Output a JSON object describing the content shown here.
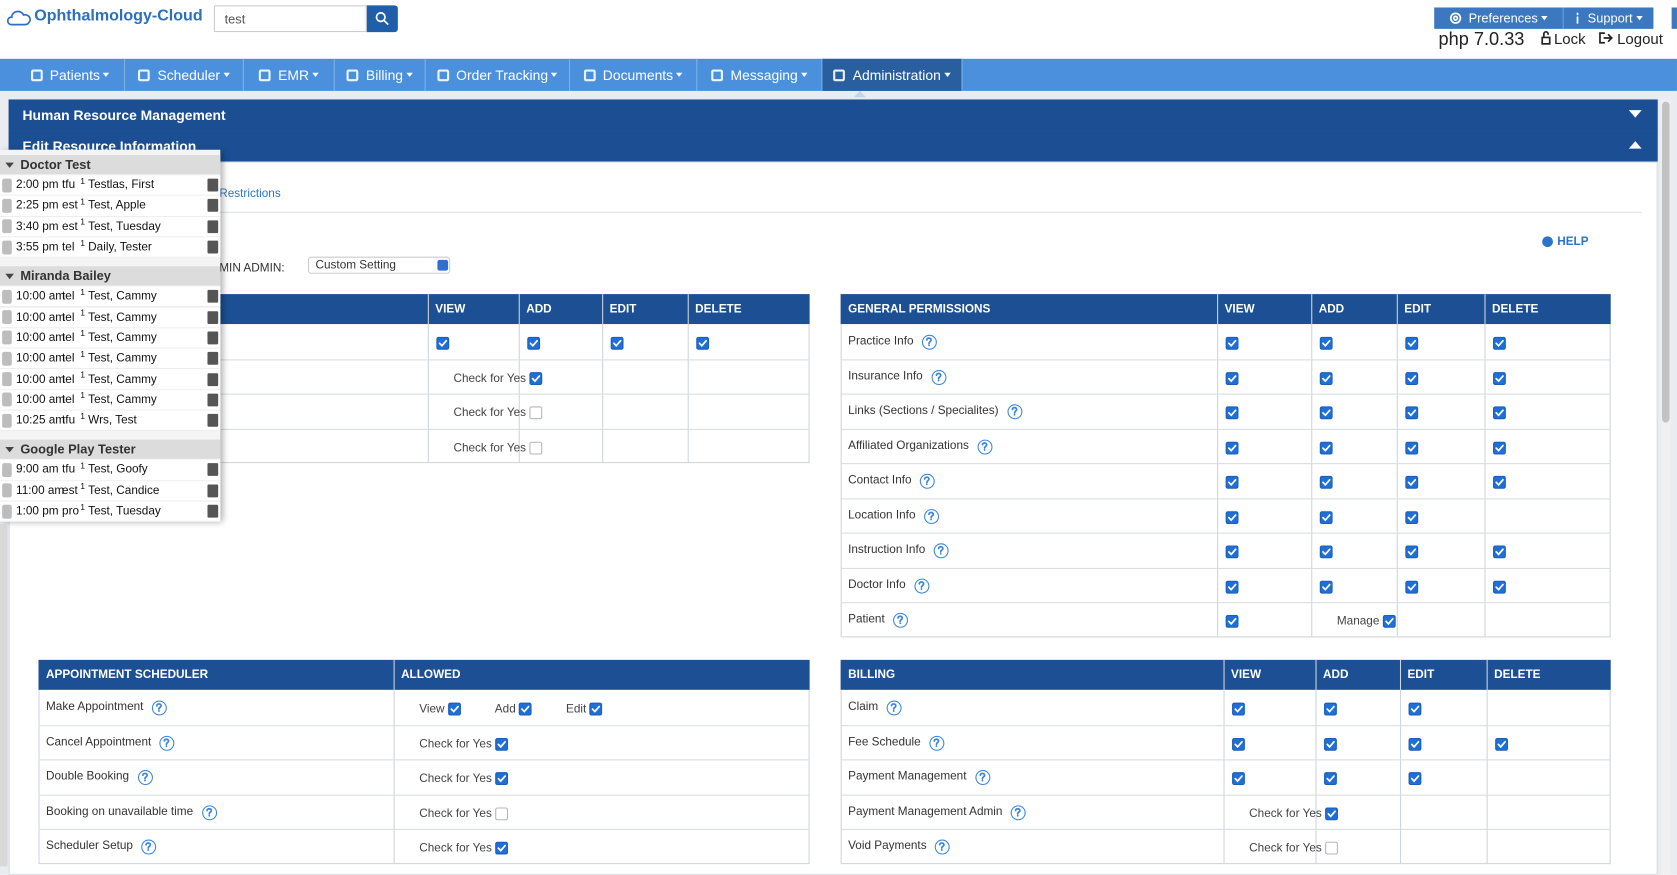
{
  "header": {
    "logo": "Ophthalmology-Cloud",
    "search": "test",
    "preferences": "Preferences",
    "support": "Support",
    "php": "php 7.0.33",
    "lock": "Lock",
    "logout": "Logout"
  },
  "nav": [
    "Patients",
    "Scheduler",
    "EMR",
    "Billing",
    "Order Tracking",
    "Documents",
    "Messaging",
    "Administration"
  ],
  "panels": [
    "Human Resource Management",
    "Edit Resource Information"
  ],
  "tab": "Restrictions",
  "admin_label": "MIN ADMIN:",
  "admin_select": "Custom Setting",
  "help": "HELP",
  "tables": [
    {
      "headers": [
        null,
        "VIEW",
        "ADD",
        "EDIT",
        "DELETE"
      ],
      "rows": [
        {
          "checks": [
            true,
            true,
            true,
            true
          ]
        },
        {
          "options": [
            {
              "label": "Check for Yes",
              "checked": true
            }
          ]
        },
        {
          "options": [
            {
              "label": "Check for Yes",
              "checked": false
            }
          ]
        },
        {
          "options": [
            {
              "label": "Check for Yes",
              "checked": false
            }
          ]
        }
      ]
    },
    {
      "headers": [
        "GENERAL PERMISSIONS",
        "VIEW",
        "ADD",
        "EDIT",
        "DELETE"
      ],
      "rows": [
        {
          "name": "Practice Info",
          "checks": [
            true,
            true,
            true,
            true
          ]
        },
        {
          "name": "Insurance Info",
          "checks": [
            true,
            true,
            true,
            true
          ]
        },
        {
          "name": "Links (Sections / Specialites)",
          "checks": [
            true,
            true,
            true,
            true
          ]
        },
        {
          "name": "Affiliated Organizations",
          "checks": [
            true,
            true,
            true,
            true
          ]
        },
        {
          "name": "Contact Info",
          "checks": [
            true,
            true,
            true,
            true
          ]
        },
        {
          "name": "Location Info",
          "checks": [
            true,
            true,
            true,
            null
          ]
        },
        {
          "name": "Instruction Info",
          "checks": [
            true,
            true,
            true,
            true
          ]
        },
        {
          "name": "Doctor Info",
          "checks": [
            true,
            true,
            true,
            true
          ]
        },
        {
          "name": "Patient",
          "checks": [
            true
          ],
          "options": [
            {
              "label": "Manage",
              "checked": true
            }
          ]
        }
      ]
    },
    {
      "headers": [
        "APPOINTMENT SCHEDULER",
        "ALLOWED"
      ],
      "rows": [
        {
          "name": "Make Appointment",
          "options": [
            {
              "label": "View",
              "checked": true
            },
            {
              "label": "Add",
              "checked": true
            },
            {
              "label": "Edit",
              "checked": true
            }
          ]
        },
        {
          "name": "Cancel Appointment",
          "options": [
            {
              "label": "Check for Yes",
              "checked": true
            }
          ]
        },
        {
          "name": "Double Booking",
          "options": [
            {
              "label": "Check for Yes",
              "checked": true
            }
          ]
        },
        {
          "name": "Booking on unavailable time",
          "options": [
            {
              "label": "Check for Yes",
              "checked": false
            }
          ]
        },
        {
          "name": "Scheduler Setup",
          "options": [
            {
              "label": "Check for Yes",
              "checked": true
            }
          ]
        }
      ]
    },
    {
      "headers": [
        "BILLING",
        "VIEW",
        "ADD",
        "EDIT",
        "DELETE"
      ],
      "rows": [
        {
          "name": "Claim",
          "checks": [
            true,
            true,
            true,
            null
          ]
        },
        {
          "name": "Fee Schedule",
          "checks": [
            true,
            true,
            true,
            true
          ]
        },
        {
          "name": "Payment Management",
          "checks": [
            true,
            true,
            true,
            null
          ]
        },
        {
          "name": "Payment Management Admin",
          "options": [
            {
              "label": "Check for Yes",
              "checked": true
            }
          ]
        },
        {
          "name": "Void Payments",
          "options": [
            {
              "label": "Check for Yes",
              "checked": false
            }
          ]
        }
      ]
    }
  ],
  "schedule": [
    {
      "name": "Doctor Test",
      "appointments": [
        {
          "time": "2:00 pm",
          "type": "tfu",
          "num": 1,
          "name": "Testlas, First"
        },
        {
          "time": "2:25 pm",
          "type": "est",
          "num": 1,
          "name": "Test, Apple"
        },
        {
          "time": "3:40 pm",
          "type": "est",
          "num": 1,
          "name": "Test, Tuesday"
        },
        {
          "time": "3:55 pm",
          "type": "tel",
          "num": 1,
          "name": "Daily, Tester"
        }
      ]
    },
    {
      "name": "Miranda Bailey",
      "appointments": [
        {
          "time": "10:00 am",
          "type": "tel",
          "num": 1,
          "name": "Test, Cammy"
        },
        {
          "time": "10:00 am",
          "type": "tel",
          "num": 1,
          "name": "Test, Cammy"
        },
        {
          "time": "10:00 am",
          "type": "tel",
          "num": 1,
          "name": "Test, Cammy"
        },
        {
          "time": "10:00 am",
          "type": "tel",
          "num": 1,
          "name": "Test, Cammy"
        },
        {
          "time": "10:00 am",
          "type": "tel",
          "num": 1,
          "name": "Test, Cammy"
        },
        {
          "time": "10:00 am",
          "type": "tel",
          "num": 1,
          "name": "Test, Cammy"
        },
        {
          "time": "10:25 am",
          "type": "tfu",
          "num": 1,
          "name": "Wrs, Test"
        }
      ]
    },
    {
      "name": "Google Play Tester",
      "appointments": [
        {
          "time": "9:00 am",
          "type": "tfu",
          "num": 1,
          "name": "Test, Goofy"
        },
        {
          "time": "11:00 am",
          "type": "est",
          "num": 1,
          "name": "Test, Candice"
        },
        {
          "time": "1:00 pm",
          "type": "pro",
          "num": 1,
          "name": "Test, Tuesday"
        }
      ]
    }
  ]
}
